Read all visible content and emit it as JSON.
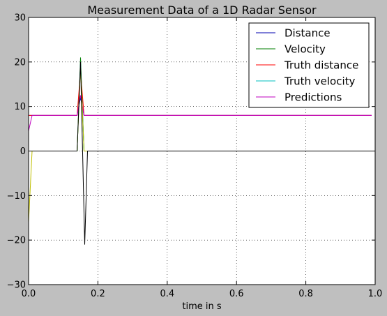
{
  "chart_data": {
    "type": "line",
    "title": "Measurement Data of a 1D Radar Sensor",
    "xlabel": "time in s",
    "ylabel": "",
    "xlim": [
      0.0,
      1.0
    ],
    "ylim": [
      -30,
      30
    ],
    "xticks": [
      0.0,
      0.2,
      0.4,
      0.6,
      0.8,
      1.0
    ],
    "xtick_labels": [
      "0.0",
      "0.2",
      "0.4",
      "0.6",
      "0.8",
      "1.0"
    ],
    "yticks": [
      -30,
      -20,
      -10,
      0,
      10,
      20,
      30
    ],
    "ytick_labels": [
      "−30",
      "−20",
      "−10",
      "0",
      "10",
      "20",
      "30"
    ],
    "grid": true,
    "legend_position": "top-right",
    "series": [
      {
        "name": "Distance",
        "color": "#0000b0",
        "x": [
          0.0,
          0.01,
          0.14,
          0.15,
          0.16,
          0.17,
          0.99
        ],
        "y": [
          8.0,
          8.0,
          8.0,
          12.0,
          8.0,
          8.0,
          8.0
        ]
      },
      {
        "name": "Velocity",
        "color": "#007f00",
        "x": [
          0.0,
          0.01,
          0.14,
          0.15,
          0.16,
          0.17,
          0.99
        ],
        "y": [
          0.0,
          0.0,
          0.0,
          21.0,
          0.0,
          0.0,
          0.0
        ]
      },
      {
        "name": "Truth distance",
        "color": "#ff0000",
        "x": [
          0.0,
          0.01,
          0.14,
          0.15,
          0.16,
          0.99
        ],
        "y": [
          8.0,
          8.0,
          8.0,
          18.0,
          8.0,
          8.0
        ]
      },
      {
        "name": "Truth velocity",
        "color": "#00bfbf",
        "x": [
          0.0,
          0.01,
          0.14,
          0.15,
          0.16,
          0.99
        ],
        "y": [
          0.0,
          0.0,
          0.0,
          20.0,
          0.0,
          0.0
        ]
      },
      {
        "name": "Predictions",
        "color": "#bf00bf",
        "x": [
          0.0,
          0.01,
          0.14,
          0.15,
          0.16,
          0.99
        ],
        "y": [
          4.5,
          8.0,
          8.0,
          12.5,
          8.0,
          8.0
        ]
      },
      {
        "name": "",
        "color": "#bfbf00",
        "x": [
          0.0,
          0.01,
          0.14,
          0.15,
          0.16,
          0.17,
          0.99
        ],
        "y": [
          -16.0,
          0.0,
          0.0,
          19.0,
          0.0,
          0.0,
          0.0
        ]
      },
      {
        "name": "",
        "color": "#000000",
        "x": [
          0.0,
          0.14,
          0.15,
          0.162,
          0.17,
          0.99
        ],
        "y": [
          0.0,
          0.0,
          20.0,
          -21.0,
          0.0,
          0.0
        ]
      }
    ]
  }
}
